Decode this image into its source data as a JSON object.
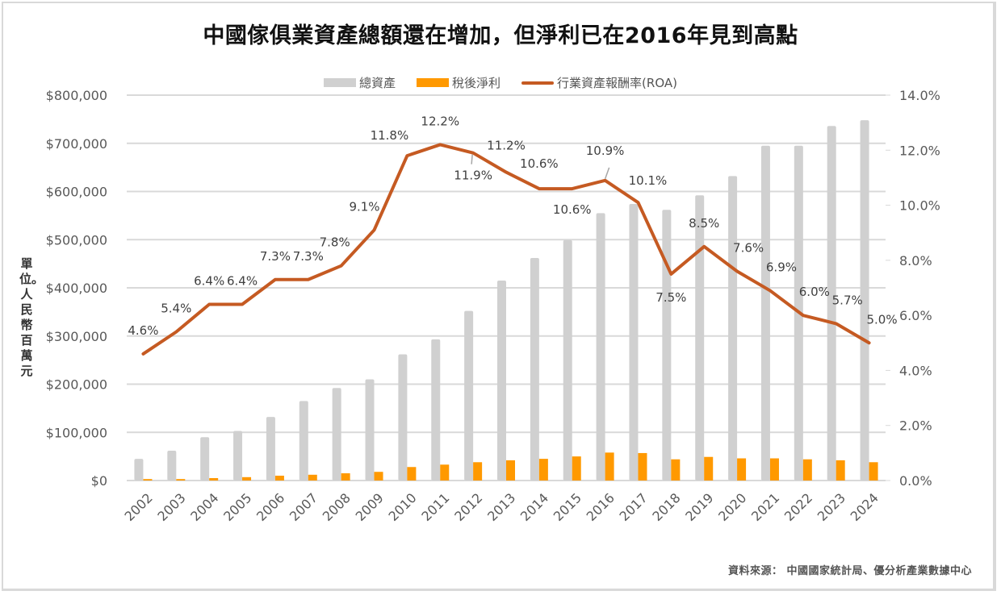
{
  "chart_data": {
    "type": "bar",
    "title": "中國傢俱業資產總額還在增加，但淨利已在2016年見到高點",
    "xlabel": "",
    "ylabel": "單位。人民幣百萬元",
    "y2label": "",
    "categories": [
      "2002",
      "2003",
      "2004",
      "2005",
      "2006",
      "2007",
      "2008",
      "2009",
      "2010",
      "2011",
      "2012",
      "2013",
      "2014",
      "2015",
      "2016",
      "2017",
      "2018",
      "2019",
      "2020",
      "2021",
      "2022",
      "2023",
      "2024"
    ],
    "series": [
      {
        "name": "總資產",
        "type": "bar",
        "axis": "left",
        "color": "#D0D0D0",
        "values": [
          45000,
          62000,
          90000,
          103000,
          132000,
          165000,
          192000,
          210000,
          262000,
          293000,
          352000,
          415000,
          462000,
          499000,
          555000,
          574000,
          562000,
          592000,
          632000,
          695000,
          695000,
          736000,
          748000
        ]
      },
      {
        "name": "稅後淨利",
        "type": "bar",
        "axis": "left",
        "color": "#FF9900",
        "values": [
          3000,
          3000,
          5000,
          7000,
          10000,
          12000,
          15000,
          18000,
          28000,
          33000,
          38000,
          42000,
          45000,
          50000,
          58000,
          57000,
          44000,
          49000,
          46000,
          46000,
          44000,
          42000,
          38000
        ]
      },
      {
        "name": "行業資產報酬率(ROA)",
        "type": "line",
        "axis": "right",
        "color": "#C55A22",
        "values": [
          4.6,
          5.4,
          6.4,
          6.4,
          7.3,
          7.3,
          7.8,
          9.1,
          11.8,
          12.2,
          11.9,
          11.2,
          10.6,
          10.6,
          10.9,
          10.1,
          7.5,
          8.5,
          7.6,
          6.9,
          6.0,
          5.7,
          5.0
        ],
        "labels": [
          "4.6%",
          "5.4%",
          "6.4%",
          "6.4%",
          "7.3%",
          "7.3%",
          "7.8%",
          "9.1%",
          "11.8%",
          "12.2%",
          "11.9%",
          "11.2%",
          "10.6%",
          "10.6%",
          "10.9%",
          "10.1%",
          "7.5%",
          "8.5%",
          "7.6%",
          "6.9%",
          "6.0%",
          "5.7%",
          "5.0%"
        ]
      }
    ],
    "y_left": {
      "ylim": [
        0,
        800000
      ],
      "ticks": [
        0,
        100000,
        200000,
        300000,
        400000,
        500000,
        600000,
        700000,
        800000
      ],
      "tick_labels": [
        "$0",
        "$100,000",
        "$200,000",
        "$300,000",
        "$400,000",
        "$500,000",
        "$600,000",
        "$700,000",
        "$800,000"
      ]
    },
    "y_right": {
      "ylim": [
        0,
        14
      ],
      "ticks": [
        0,
        2,
        4,
        6,
        8,
        10,
        12,
        14
      ],
      "tick_labels": [
        "0.0%",
        "2.0%",
        "4.0%",
        "6.0%",
        "8.0%",
        "10.0%",
        "12.0%",
        "14.0%"
      ]
    },
    "grid": true,
    "legend_position": "top-center",
    "x_tick_rotation": "-45deg"
  },
  "legend": [
    {
      "label": "總資產",
      "kind": "bar",
      "color": "#D0D0D0"
    },
    {
      "label": "稅後淨利",
      "kind": "bar",
      "color": "#FF9900"
    },
    {
      "label": "行業資產報酬率(ROA)",
      "kind": "line",
      "color": "#C55A22"
    }
  ],
  "source_note": "資料來源： 中國國家統計局、優分析產業數據中心"
}
